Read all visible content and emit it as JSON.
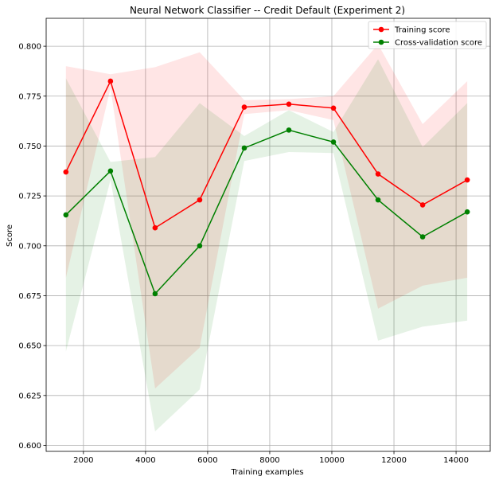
{
  "chart_data": {
    "type": "line",
    "title": "Neural Network Classifier -- Credit Default (Experiment 2)",
    "xlabel": "Training examples",
    "ylabel": "Score",
    "xlim": [
      800,
      15100
    ],
    "ylim": [
      0.597,
      0.814
    ],
    "xticks": [
      2000,
      4000,
      6000,
      8000,
      10000,
      12000,
      14000
    ],
    "yticks": [
      0.6,
      0.625,
      0.65,
      0.675,
      0.7,
      0.725,
      0.75,
      0.775,
      0.8
    ],
    "ytick_labels": [
      "0.600",
      "0.625",
      "0.650",
      "0.675",
      "0.700",
      "0.725",
      "0.750",
      "0.775",
      "0.800"
    ],
    "grid": true,
    "legend_position": "top-right",
    "x": [
      1436,
      2872,
      4308,
      5744,
      7180,
      8616,
      10052,
      11488,
      12924,
      14360
    ],
    "series": [
      {
        "name": "Training score",
        "color": "#ff0000",
        "band_color": "#ff0000",
        "values": [
          0.737,
          0.7825,
          0.709,
          0.723,
          0.7695,
          0.771,
          0.769,
          0.736,
          0.7205,
          0.733
        ],
        "band_upper": [
          0.79,
          0.786,
          0.7895,
          0.797,
          0.773,
          0.7735,
          0.775,
          0.801,
          0.761,
          0.7825
        ],
        "band_lower": [
          0.684,
          0.779,
          0.6285,
          0.649,
          0.766,
          0.768,
          0.763,
          0.6685,
          0.68,
          0.684
        ]
      },
      {
        "name": "Cross-validation score",
        "color": "#008000",
        "band_color": "#008000",
        "values": [
          0.7155,
          0.7375,
          0.676,
          0.7,
          0.749,
          0.758,
          0.752,
          0.723,
          0.7045,
          0.717
        ],
        "band_upper": [
          0.784,
          0.742,
          0.7445,
          0.7715,
          0.755,
          0.768,
          0.757,
          0.7935,
          0.7495,
          0.7715
        ],
        "band_lower": [
          0.647,
          0.733,
          0.607,
          0.628,
          0.7425,
          0.747,
          0.7465,
          0.6525,
          0.6595,
          0.6625
        ]
      }
    ]
  }
}
